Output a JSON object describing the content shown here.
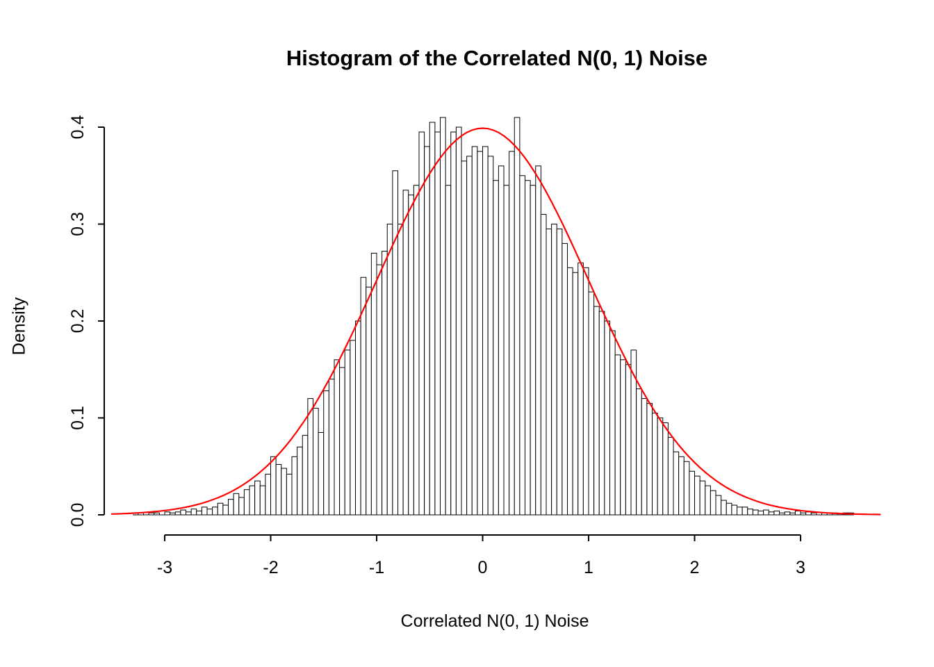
{
  "chart_data": {
    "type": "bar",
    "subtype": "histogram",
    "title": "Histogram of the Correlated N(0, 1) Noise",
    "xlabel": "Correlated N(0, 1) Noise",
    "ylabel": "Density",
    "xlim": [
      -3.6,
      3.8
    ],
    "ylim": [
      0.0,
      0.41
    ],
    "grid": "off",
    "legend": "none",
    "x_ticks": [
      -3,
      -2,
      -1,
      0,
      1,
      2,
      3
    ],
    "x_tick_labels": [
      "-3",
      "-2",
      "-1",
      "0",
      "1",
      "2",
      "3"
    ],
    "y_ticks": [
      0.0,
      0.1,
      0.2,
      0.3,
      0.4
    ],
    "y_tick_labels": [
      "0.0",
      "0.1",
      "0.2",
      "0.3",
      "0.4"
    ],
    "bar_fill": "#FFFFFF",
    "bar_stroke": "#000000",
    "bin_start": -3.3,
    "bin_width": 0.05,
    "densities": [
      0.0,
      0.002,
      0.0,
      0.002,
      0.002,
      0.0,
      0.003,
      0.002,
      0.003,
      0.005,
      0.003,
      0.006,
      0.004,
      0.008,
      0.006,
      0.008,
      0.012,
      0.01,
      0.016,
      0.022,
      0.018,
      0.026,
      0.03,
      0.035,
      0.03,
      0.042,
      0.06,
      0.052,
      0.048,
      0.042,
      0.06,
      0.07,
      0.082,
      0.12,
      0.11,
      0.085,
      0.128,
      0.14,
      0.16,
      0.152,
      0.17,
      0.18,
      0.2,
      0.245,
      0.235,
      0.27,
      0.258,
      0.272,
      0.3,
      0.355,
      0.3,
      0.335,
      0.33,
      0.34,
      0.395,
      0.38,
      0.405,
      0.395,
      0.41,
      0.34,
      0.395,
      0.4,
      0.365,
      0.37,
      0.38,
      0.375,
      0.38,
      0.37,
      0.345,
      0.36,
      0.34,
      0.375,
      0.41,
      0.35,
      0.345,
      0.34,
      0.36,
      0.31,
      0.295,
      0.3,
      0.295,
      0.28,
      0.255,
      0.25,
      0.26,
      0.255,
      0.23,
      0.215,
      0.21,
      0.2,
      0.19,
      0.165,
      0.16,
      0.155,
      0.17,
      0.13,
      0.12,
      0.115,
      0.105,
      0.1,
      0.095,
      0.08,
      0.065,
      0.06,
      0.055,
      0.045,
      0.04,
      0.035,
      0.03,
      0.025,
      0.02,
      0.015,
      0.012,
      0.01,
      0.008,
      0.008,
      0.006,
      0.005,
      0.004,
      0.005,
      0.003,
      0.004,
      0.002,
      0.003,
      0.002,
      0.004,
      0.002,
      0.003,
      0.002,
      0.0,
      0.002,
      0.0,
      0.002,
      0.0,
      0.002,
      0.002
    ],
    "overlay_curve": {
      "distribution": "normal",
      "mean": 0,
      "sd": 1,
      "color": "#FF0000",
      "x_range": [
        -3.5,
        3.77
      ]
    }
  }
}
